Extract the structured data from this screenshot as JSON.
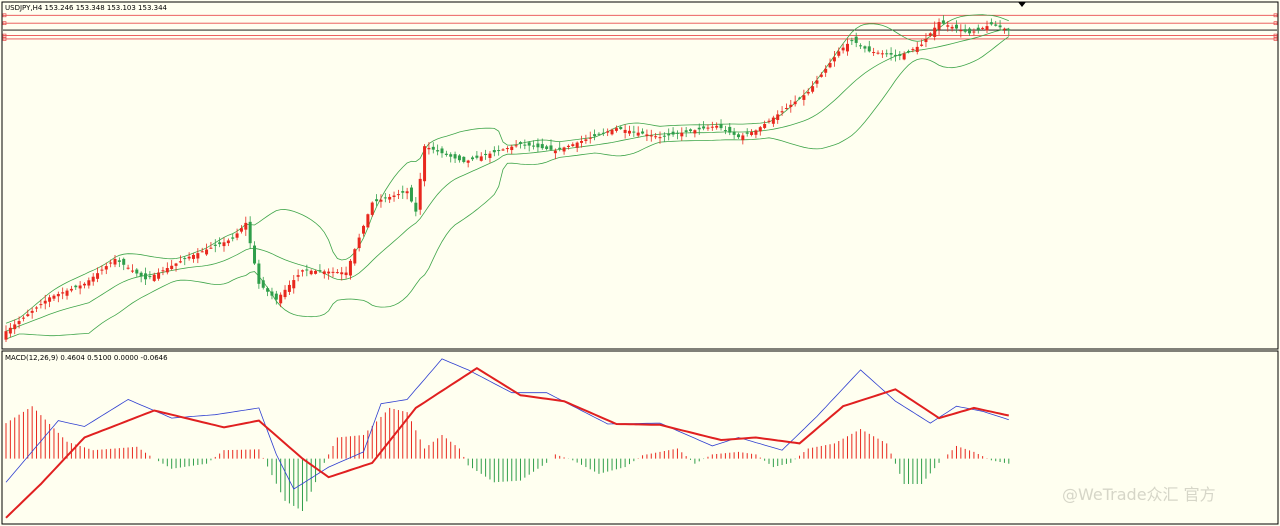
{
  "colors": {
    "background": "#fffff0",
    "frame": "#000000",
    "bull": "#2f9e4a",
    "bear": "#e8281e",
    "bands": "#3fa54a",
    "levels": "#e84a4a",
    "price_line": "#000000",
    "macd_line": "#2f3fd0",
    "signal_line": "#e02020",
    "hist_pos": "#e8281e",
    "hist_neg": "#2f9e4a"
  },
  "watermark": "@WeTrade众汇 官方",
  "chart_data": [
    {
      "type": "candlestick",
      "title": "USDJPY,H4  153.246 153.348 153.103 153.344",
      "symbol": "USDJPY",
      "timeframe": "H4",
      "ohlc_label": "153.246 153.348 153.103 153.344",
      "indicators": [
        "Bollinger Bands"
      ],
      "ylim": [
        139.3,
        154.5
      ],
      "current_price": 153.344,
      "horizontal_levels": [
        154.0,
        153.65,
        153.1,
        152.95
      ],
      "close_path": [
        {
          "i": 0,
          "close": 140.0
        },
        {
          "i": 10,
          "close": 141.5
        },
        {
          "i": 18,
          "close": 142.1
        },
        {
          "i": 25,
          "close": 143.2
        },
        {
          "i": 32,
          "close": 142.3
        },
        {
          "i": 42,
          "close": 143.3
        },
        {
          "i": 52,
          "close": 144.1
        },
        {
          "i": 55,
          "close": 144.8
        },
        {
          "i": 58,
          "close": 142.1
        },
        {
          "i": 62,
          "close": 141.4
        },
        {
          "i": 68,
          "close": 142.7
        },
        {
          "i": 78,
          "close": 142.6
        },
        {
          "i": 84,
          "close": 145.7
        },
        {
          "i": 92,
          "close": 146.2
        },
        {
          "i": 94,
          "close": 145.3
        },
        {
          "i": 96,
          "close": 148.2
        },
        {
          "i": 105,
          "close": 147.5
        },
        {
          "i": 118,
          "close": 148.3
        },
        {
          "i": 126,
          "close": 148.0
        },
        {
          "i": 140,
          "close": 149.0
        },
        {
          "i": 150,
          "close": 148.6
        },
        {
          "i": 163,
          "close": 149.1
        },
        {
          "i": 168,
          "close": 148.6
        },
        {
          "i": 172,
          "close": 148.9
        },
        {
          "i": 184,
          "close": 150.6
        },
        {
          "i": 191,
          "close": 152.4
        },
        {
          "i": 194,
          "close": 152.9
        },
        {
          "i": 198,
          "close": 152.4
        },
        {
          "i": 205,
          "close": 152.2
        },
        {
          "i": 210,
          "close": 152.7
        },
        {
          "i": 214,
          "close": 153.7
        },
        {
          "i": 221,
          "close": 153.2
        },
        {
          "i": 226,
          "close": 153.6
        },
        {
          "i": 230,
          "close": 153.34
        }
      ]
    },
    {
      "type": "line",
      "title": "MACD(12,26,9) 0.4604 0.5100 0.0000 -0.0646",
      "params": "12,26,9",
      "values_label": "0.4604 0.5100 0.0000 -0.0646",
      "ylim": [
        -0.75,
        1.25
      ],
      "series": [
        {
          "key": "macd",
          "points": [
            {
              "i": 0,
              "v": -0.28
            },
            {
              "i": 12,
              "v": 0.45
            },
            {
              "i": 18,
              "v": 0.38
            },
            {
              "i": 28,
              "v": 0.7
            },
            {
              "i": 38,
              "v": 0.48
            },
            {
              "i": 48,
              "v": 0.52
            },
            {
              "i": 58,
              "v": 0.6
            },
            {
              "i": 62,
              "v": 0.05
            },
            {
              "i": 66,
              "v": -0.36
            },
            {
              "i": 74,
              "v": -0.1
            },
            {
              "i": 82,
              "v": 0.08
            },
            {
              "i": 86,
              "v": 0.65
            },
            {
              "i": 92,
              "v": 0.7
            },
            {
              "i": 100,
              "v": 1.18
            },
            {
              "i": 106,
              "v": 1.05
            },
            {
              "i": 116,
              "v": 0.78
            },
            {
              "i": 124,
              "v": 0.78
            },
            {
              "i": 138,
              "v": 0.41
            },
            {
              "i": 150,
              "v": 0.42
            },
            {
              "i": 162,
              "v": 0.15
            },
            {
              "i": 168,
              "v": 0.25
            },
            {
              "i": 178,
              "v": 0.1
            },
            {
              "i": 186,
              "v": 0.5
            },
            {
              "i": 196,
              "v": 1.05
            },
            {
              "i": 204,
              "v": 0.68
            },
            {
              "i": 212,
              "v": 0.42
            },
            {
              "i": 218,
              "v": 0.62
            },
            {
              "i": 224,
              "v": 0.56
            },
            {
              "i": 230,
              "v": 0.46
            }
          ]
        },
        {
          "key": "signal",
          "points": [
            {
              "i": 0,
              "v": -0.7
            },
            {
              "i": 8,
              "v": -0.3
            },
            {
              "i": 18,
              "v": 0.25
            },
            {
              "i": 34,
              "v": 0.57
            },
            {
              "i": 50,
              "v": 0.37
            },
            {
              "i": 58,
              "v": 0.45
            },
            {
              "i": 68,
              "v": 0.0
            },
            {
              "i": 74,
              "v": -0.22
            },
            {
              "i": 84,
              "v": -0.05
            },
            {
              "i": 94,
              "v": 0.6
            },
            {
              "i": 108,
              "v": 1.07
            },
            {
              "i": 118,
              "v": 0.75
            },
            {
              "i": 128,
              "v": 0.68
            },
            {
              "i": 140,
              "v": 0.41
            },
            {
              "i": 150,
              "v": 0.4
            },
            {
              "i": 164,
              "v": 0.22
            },
            {
              "i": 172,
              "v": 0.25
            },
            {
              "i": 182,
              "v": 0.18
            },
            {
              "i": 192,
              "v": 0.62
            },
            {
              "i": 204,
              "v": 0.82
            },
            {
              "i": 214,
              "v": 0.48
            },
            {
              "i": 222,
              "v": 0.6
            },
            {
              "i": 230,
              "v": 0.51
            }
          ]
        }
      ],
      "histogram": [
        {
          "i": 0,
          "v": 0.42
        },
        {
          "i": 6,
          "v": 0.62
        },
        {
          "i": 14,
          "v": 0.2
        },
        {
          "i": 20,
          "v": 0.1
        },
        {
          "i": 30,
          "v": 0.14
        },
        {
          "i": 34,
          "v": 0.0
        },
        {
          "i": 38,
          "v": -0.12
        },
        {
          "i": 46,
          "v": -0.06
        },
        {
          "i": 50,
          "v": 0.1
        },
        {
          "i": 58,
          "v": 0.11
        },
        {
          "i": 64,
          "v": -0.5
        },
        {
          "i": 68,
          "v": -0.62
        },
        {
          "i": 73,
          "v": -0.05
        },
        {
          "i": 76,
          "v": 0.25
        },
        {
          "i": 82,
          "v": 0.28
        },
        {
          "i": 88,
          "v": 0.6
        },
        {
          "i": 92,
          "v": 0.55
        },
        {
          "i": 96,
          "v": 0.12
        },
        {
          "i": 100,
          "v": 0.28
        },
        {
          "i": 104,
          "v": 0.12
        },
        {
          "i": 106,
          "v": -0.08
        },
        {
          "i": 112,
          "v": -0.28
        },
        {
          "i": 118,
          "v": -0.26
        },
        {
          "i": 124,
          "v": -0.05
        },
        {
          "i": 126,
          "v": 0.05
        },
        {
          "i": 130,
          "v": -0.02
        },
        {
          "i": 136,
          "v": -0.18
        },
        {
          "i": 142,
          "v": -0.1
        },
        {
          "i": 146,
          "v": 0.04
        },
        {
          "i": 150,
          "v": 0.08
        },
        {
          "i": 154,
          "v": 0.12
        },
        {
          "i": 158,
          "v": -0.06
        },
        {
          "i": 162,
          "v": 0.05
        },
        {
          "i": 168,
          "v": 0.08
        },
        {
          "i": 172,
          "v": 0.05
        },
        {
          "i": 176,
          "v": -0.1
        },
        {
          "i": 180,
          "v": -0.05
        },
        {
          "i": 184,
          "v": 0.12
        },
        {
          "i": 190,
          "v": 0.18
        },
        {
          "i": 196,
          "v": 0.35
        },
        {
          "i": 202,
          "v": 0.18
        },
        {
          "i": 206,
          "v": -0.3
        },
        {
          "i": 210,
          "v": -0.3
        },
        {
          "i": 214,
          "v": -0.05
        },
        {
          "i": 218,
          "v": 0.15
        },
        {
          "i": 222,
          "v": 0.08
        },
        {
          "i": 226,
          "v": -0.02
        },
        {
          "i": 230,
          "v": -0.06
        }
      ]
    }
  ]
}
